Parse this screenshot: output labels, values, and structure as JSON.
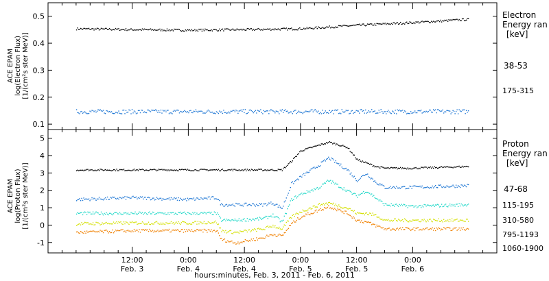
{
  "chart_data": [
    {
      "type": "scatter",
      "ylabel_lines": [
        "ACE EPAM",
        "log(Electron Flux)",
        "[1/(cm²s ster MeV)]"
      ],
      "ylim": [
        0.08,
        0.55
      ],
      "yticks": [
        0.1,
        0.2,
        0.3,
        0.4,
        0.5
      ],
      "ytick_labels": [
        "0.1",
        "0.2",
        "0.3",
        "0.4",
        "0.5"
      ],
      "legend_lines": [
        "Electron",
        "Energy ran",
        "[keV]"
      ],
      "series": [
        {
          "name": "38-53",
          "color": "#000000",
          "x": [
            0,
            12,
            24,
            36,
            48,
            60,
            72,
            84
          ],
          "values": [
            0.455,
            0.452,
            0.45,
            0.452,
            0.455,
            0.468,
            0.478,
            0.49
          ]
        },
        {
          "name": "175-315",
          "color": "#1f77d4",
          "x": [
            0,
            84
          ],
          "values": [
            0.148,
            0.148
          ]
        }
      ]
    },
    {
      "type": "scatter",
      "ylabel_lines": [
        "ACE EPAM",
        "log(Proton Flux)",
        "[1/(cm²s ster MeV)]"
      ],
      "ylim": [
        -1.6,
        5.5
      ],
      "yticks": [
        -1,
        0,
        1,
        2,
        3,
        4,
        5
      ],
      "ytick_labels": [
        "-1",
        "0",
        "1",
        "2",
        "3",
        "4",
        "5"
      ],
      "legend_lines": [
        "Proton",
        "Energy ran",
        "[keV]"
      ],
      "series": [
        {
          "name": "47-68",
          "color": "#000000",
          "x": [
            0,
            12,
            24,
            34,
            42,
            44,
            46,
            48,
            54,
            58,
            60,
            62,
            64,
            66,
            72,
            84
          ],
          "values": [
            3.2,
            3.2,
            3.2,
            3.2,
            3.2,
            3.2,
            3.7,
            4.3,
            4.8,
            4.5,
            3.8,
            3.6,
            3.4,
            3.3,
            3.3,
            3.4
          ]
        },
        {
          "name": "115-195",
          "color": "#1f77d4",
          "x": [
            0,
            12,
            24,
            30,
            31,
            34,
            40,
            42,
            44,
            46,
            48,
            52,
            54,
            58,
            60,
            62,
            64,
            66,
            72,
            84
          ],
          "values": [
            1.5,
            1.6,
            1.5,
            1.6,
            1.2,
            1.2,
            1.2,
            1.3,
            1.0,
            2.4,
            2.8,
            3.5,
            3.9,
            3.2,
            2.6,
            3.0,
            2.5,
            2.2,
            2.2,
            2.3
          ]
        },
        {
          "name": "310-580",
          "color": "#20d8c8",
          "x": [
            0,
            12,
            24,
            30,
            31,
            34,
            40,
            42,
            44,
            46,
            48,
            52,
            54,
            58,
            60,
            62,
            64,
            66,
            72,
            84
          ],
          "values": [
            0.7,
            0.7,
            0.7,
            0.7,
            0.3,
            0.3,
            0.4,
            0.6,
            0.2,
            1.5,
            1.8,
            2.2,
            2.6,
            2.0,
            1.7,
            2.0,
            1.6,
            1.2,
            1.1,
            1.2
          ]
        },
        {
          "name": "795-1193",
          "color": "#d4e000",
          "x": [
            0,
            12,
            24,
            30,
            31,
            34,
            40,
            42,
            44,
            46,
            48,
            52,
            54,
            58,
            60,
            62,
            64,
            66,
            72,
            84
          ],
          "values": [
            0.1,
            0.15,
            0.15,
            0.2,
            -0.3,
            -0.4,
            -0.2,
            0.0,
            -0.2,
            0.5,
            0.8,
            1.2,
            1.3,
            1.0,
            0.7,
            0.7,
            0.6,
            0.3,
            0.3,
            0.3
          ]
        },
        {
          "name": "1060-1900",
          "color": "#f08000",
          "x": [
            0,
            12,
            24,
            30,
            31,
            34,
            40,
            42,
            44,
            46,
            48,
            52,
            54,
            58,
            60,
            62,
            64,
            66,
            72,
            84
          ],
          "values": [
            -0.4,
            -0.3,
            -0.3,
            -0.3,
            -0.8,
            -1.0,
            -0.7,
            -0.5,
            -0.6,
            0.1,
            0.5,
            0.9,
            1.1,
            0.7,
            0.3,
            0.2,
            0.0,
            -0.2,
            -0.2,
            -0.2
          ]
        }
      ]
    }
  ],
  "x_axis": {
    "xlim": [
      -6,
      90
    ],
    "ticks": [
      {
        "x": 12,
        "l1": "12:00",
        "l2": "Feb. 3"
      },
      {
        "x": 24,
        "l1": "0:00",
        "l2": "Feb. 4"
      },
      {
        "x": 36,
        "l1": "12:00",
        "l2": "Feb. 4"
      },
      {
        "x": 48,
        "l1": "0:00",
        "l2": "Feb. 5"
      },
      {
        "x": 60,
        "l1": "12:00",
        "l2": "Feb. 5"
      },
      {
        "x": 72,
        "l1": "0:00",
        "l2": "Feb. 6"
      }
    ],
    "minor_step": 3,
    "xlabel": "hours:minutes, Feb.  3, 2011 - Feb.  6, 2011"
  }
}
